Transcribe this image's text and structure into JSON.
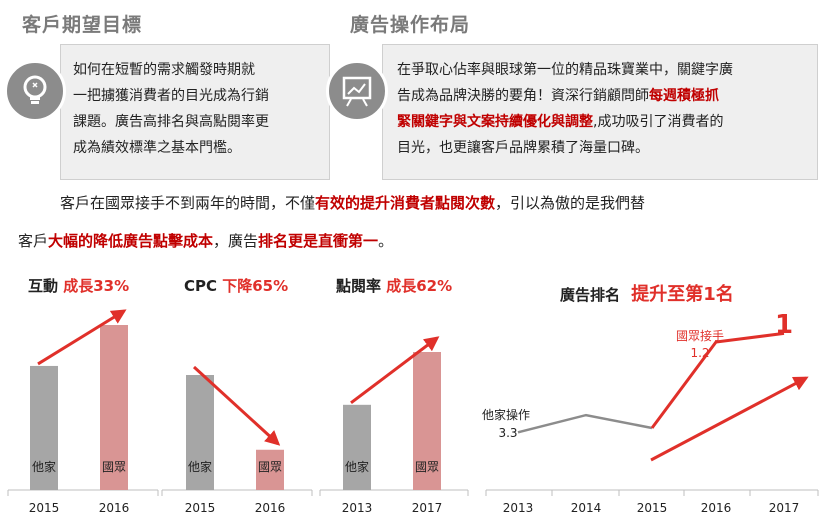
{
  "sections": {
    "left_title": "客戶期望目標",
    "right_title": "廣告操作布局"
  },
  "left_box": {
    "lines": [
      "如何在短暫的需求觸發時期就",
      "一把擄獲消費者的目光成為行銷",
      "課題。廣告高排名與高點閱率更",
      "成為績效標準之基本門檻。"
    ],
    "icon": "lightbulb-icon"
  },
  "right_box": {
    "line1": "在爭取心佔率與眼球第一位的精品珠寶業中，關鍵字廣",
    "line2a": "告成為品牌決勝的要角！資深行銷顧問師",
    "line2b": "每週積極抓",
    "line3a": "緊關鍵字與文案持續優化與調整",
    "line3b": ",成功吸引了消費者的",
    "line4": "目光，也更讓客戶品牌累積了海量口碑。",
    "icon": "presentation-chart-icon"
  },
  "paragraph": {
    "l1a": "客戶在國眾接手不到兩年的時間，不僅",
    "l1b": "有效的提升消費者點閱次數",
    "l1c": "，引以為傲的是我們替",
    "l2a": "客戶",
    "l2b": "大幅的降低廣告點擊成本",
    "l2c": "，廣告",
    "l2d": "排名更是直衝第一",
    "l2e": "。"
  },
  "colors": {
    "accent_red": "#e0302a",
    "bar_gray": "#a6a6a6",
    "bar_pink": "#d99594",
    "line_gray": "#8c8c8c"
  },
  "chart_data": [
    {
      "type": "bar",
      "title": "互動",
      "highlight": "成長33%",
      "categories": [
        "2015",
        "2016"
      ],
      "bar_labels": [
        "他家",
        "國眾"
      ],
      "values": [
        100,
        133
      ]
    },
    {
      "type": "bar",
      "title": "CPC",
      "highlight": "下降65%",
      "categories": [
        "2015",
        "2016"
      ],
      "bar_labels": [
        "他家",
        "國眾"
      ],
      "values": [
        100,
        35
      ]
    },
    {
      "type": "bar",
      "title": "點閱率",
      "highlight": "成長62%",
      "categories": [
        "2013",
        "2017"
      ],
      "bar_labels": [
        "他家",
        "國眾"
      ],
      "values": [
        100,
        162
      ]
    },
    {
      "type": "line",
      "title": "廣告排名",
      "highlight": "提升至第1名",
      "x": [
        "2013",
        "2014",
        "2015",
        "2016",
        "2017"
      ],
      "series": [
        {
          "name": "他家操作",
          "label_value": "3.3",
          "values": [
            3.3,
            2.9,
            3.2,
            null,
            null
          ]
        },
        {
          "name": "國眾接手",
          "label_value": "1.2",
          "values": [
            null,
            null,
            3.2,
            1.2,
            1.0
          ],
          "end_label": "1"
        }
      ]
    }
  ]
}
